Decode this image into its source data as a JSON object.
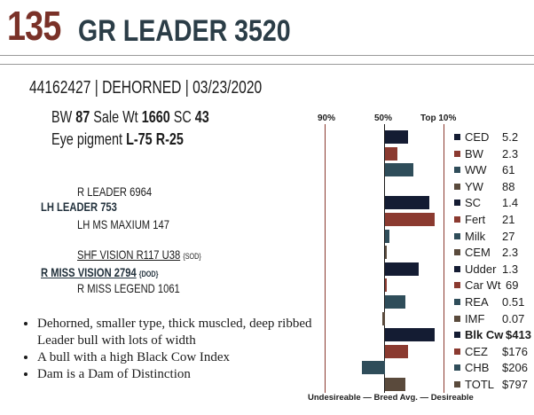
{
  "header": {
    "lot_number": "135",
    "name": "GR LEADER 3520"
  },
  "id_line": "44162427 | DEHORNED |  03/23/2020",
  "stats": {
    "bw_label": "BW",
    "bw": "87",
    "sale_wt_label": "Sale Wt",
    "sale_wt": "1660",
    "sc_label": "SC",
    "sc": "43",
    "eye_label": "Eye pigment",
    "eye_l": "L-75",
    "eye_r": "R-25"
  },
  "pedigree": {
    "sire_sire": "R LEADER 6964",
    "sire": "LH LEADER 753",
    "sire_dam": "LH MS MAXIUM 147",
    "dam_sire": "SHF VISION R117 U38",
    "dam_sire_tag": "{SOD}",
    "dam": "R MISS VISION 2794",
    "dam_tag": "{DOD}",
    "dam_dam": "R MISS LEGEND 1061"
  },
  "bullets": [
    "Dehorned, smaller type, thick muscled, deep ribbed Leader bull with lots of width",
    "A bull with a high Black Cow Index",
    "Dam is a Dam of Distinction"
  ],
  "chart_data": {
    "type": "bar",
    "orientation": "horizontal",
    "header_labels": {
      "left": "90%",
      "mid": "50%",
      "right": "Top 10%"
    },
    "footer": {
      "left": "Undesireable",
      "mid": "Breed Avg.",
      "right": "Desireable"
    },
    "categories": [
      "CED",
      "BW",
      "WW",
      "YW",
      "SC",
      "Fert",
      "Milk",
      "CEM",
      "Udder",
      "Car Wt",
      "REA",
      "IMF",
      "Blk Cw",
      "CEZ",
      "CHB",
      "TOTL"
    ],
    "values": [
      "5.2",
      "2.3",
      "61",
      "88",
      "1.4",
      "21",
      "27",
      "2.3",
      "1.3",
      "69",
      "0.51",
      "0.07",
      "$413",
      "$176",
      "$206",
      "$797"
    ],
    "bar_scores": [
      0.34,
      0.18,
      0.42,
      0,
      0.66,
      0.74,
      0.06,
      0.02,
      0.5,
      0.03,
      0.3,
      -0.04,
      0.74,
      0.34,
      -0.35,
      0.3
    ],
    "colors": [
      "#141c33",
      "#8b3a30",
      "#2f4d5a",
      "#5a4a3c",
      "#141c33",
      "#8b3a30",
      "#2f4d5a",
      "#5a4a3c",
      "#141c33",
      "#8b3a30",
      "#2f4d5a",
      "#5a4a3c",
      "#141c33",
      "#8b3a30",
      "#2f4d5a",
      "#5a4a3c"
    ],
    "bold_rows": [
      12
    ]
  }
}
